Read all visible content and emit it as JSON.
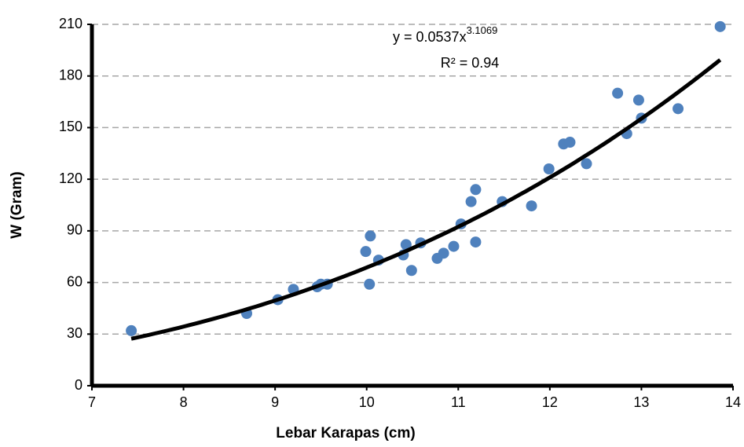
{
  "chart_data": {
    "type": "scatter",
    "x_label": "Lebar Karapas (cm)",
    "y_label": "W (Gram)",
    "xlim": [
      7,
      14
    ],
    "xticks": [
      7,
      8,
      9,
      10,
      11,
      12,
      13,
      14
    ],
    "ylim": [
      0,
      210
    ],
    "yticks": [
      0,
      30,
      60,
      90,
      120,
      150,
      180,
      210
    ],
    "grid": true,
    "color": "#4f81bd",
    "x": [
      7.43,
      8.69,
      9.03,
      9.2,
      9.46,
      9.5,
      9.57,
      9.99,
      10.04,
      10.13,
      10.03,
      10.4,
      10.43,
      10.49,
      10.59,
      10.77,
      10.84,
      10.95,
      11.03,
      11.14,
      11.19,
      11.19,
      11.48,
      11.8,
      11.99,
      12.15,
      12.22,
      12.4,
      12.74,
      12.84,
      12.97,
      13.0,
      13.4,
      13.86
    ],
    "values": [
      32,
      42,
      50,
      56,
      57.5,
      59,
      59,
      78,
      87,
      73,
      59,
      76,
      82,
      67,
      83,
      74,
      77,
      81,
      94,
      107,
      114,
      83.5,
      107,
      104.5,
      126,
      140.5,
      141.5,
      129,
      170,
      146.5,
      166,
      155.5,
      161,
      208.7
    ],
    "trendline": {
      "coefficient": 0.0537,
      "exponent": 3.1069,
      "color": "#000000",
      "equation_label": "y = 0.0537x",
      "equation_exponent_label": "3.1069",
      "r2_label": "R² = 0.94"
    }
  }
}
